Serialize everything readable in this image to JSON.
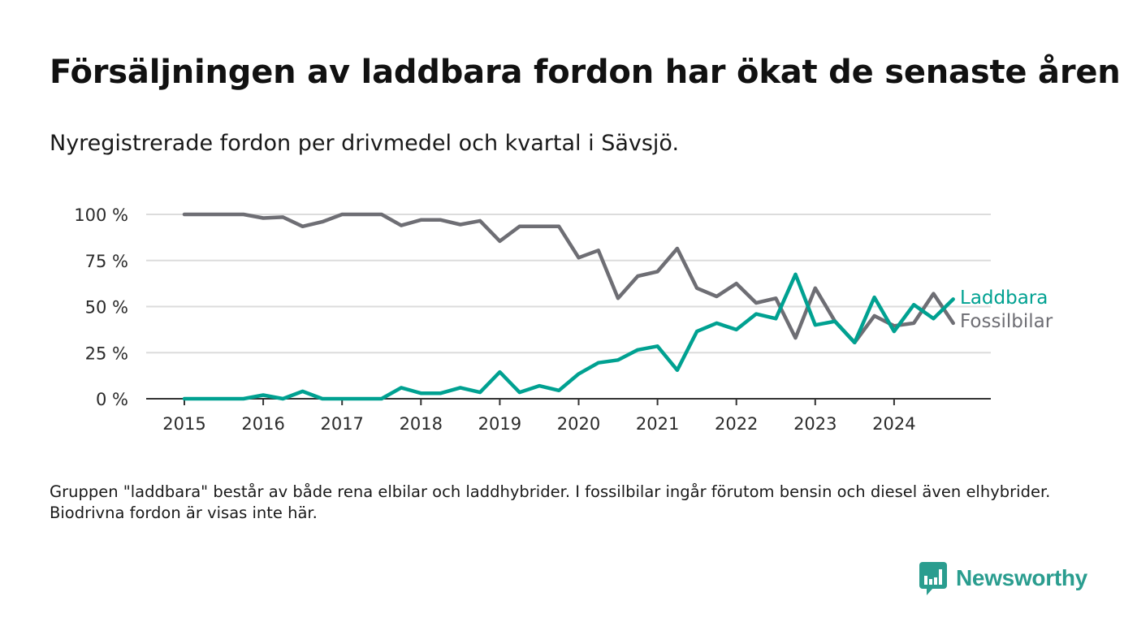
{
  "title": "Försäljningen av laddbara fordon har ökat de senaste åren",
  "subtitle": "Nyregistrerade fordon per drivmedel och kvartal i Sävsjö.",
  "note": "Gruppen \"laddbara\" består av både rena elbilar och laddhybrider. I fossilbilar ingår förutom bensin och diesel även elhybrider. Biodrivna fordon är visas inte här.",
  "brand": {
    "name": "Newsworthy",
    "icon": "newsworthy-logo-icon",
    "color": "#2a9d8f"
  },
  "chart_data": {
    "type": "line",
    "title": "Försäljningen av laddbara fordon har ökat de senaste åren",
    "xlabel": "",
    "ylabel": "",
    "x_ticks": [
      "2015",
      "2016",
      "2017",
      "2018",
      "2019",
      "2020",
      "2021",
      "2022",
      "2023",
      "2024"
    ],
    "y_ticks": [
      "0 %",
      "25 %",
      "50 %",
      "75 %",
      "100 %"
    ],
    "y_tick_values": [
      0,
      25,
      50,
      75,
      100
    ],
    "ylim": [
      0,
      100
    ],
    "xlim": [
      2014.5,
      2025.0
    ],
    "grid": true,
    "legend": "right-end-labels",
    "x": [
      2015.0,
      2015.25,
      2015.5,
      2015.75,
      2016.0,
      2016.25,
      2016.5,
      2016.75,
      2017.0,
      2017.25,
      2017.5,
      2017.75,
      2018.0,
      2018.25,
      2018.5,
      2018.75,
      2019.0,
      2019.25,
      2019.5,
      2019.75,
      2020.0,
      2020.25,
      2020.5,
      2020.75,
      2021.0,
      2021.25,
      2021.5,
      2021.75,
      2022.0,
      2022.25,
      2022.5,
      2022.75,
      2023.0,
      2023.25,
      2023.5,
      2023.75,
      2024.0,
      2024.25,
      2024.5,
      2024.75
    ],
    "series": [
      {
        "name": "Laddbara",
        "color": "#00a191",
        "values": [
          0,
          0,
          0,
          0,
          2,
          0,
          4,
          0,
          0,
          0,
          0,
          6,
          3,
          3,
          6,
          3.5,
          14.5,
          3.5,
          7,
          4.5,
          13.5,
          19.5,
          21,
          26.5,
          28.5,
          15.5,
          36.5,
          41,
          37.5,
          46,
          43.5,
          67.5,
          40,
          42,
          30.5,
          55,
          36.5,
          51,
          43.5,
          54
        ]
      },
      {
        "name": "Fossilbilar",
        "color": "#6e6e74",
        "values": [
          100,
          100,
          100,
          100,
          98,
          98.5,
          93.5,
          96,
          100,
          100,
          100,
          94,
          97,
          97,
          94.5,
          96.5,
          85.5,
          93.5,
          93.5,
          93.5,
          76.5,
          80.5,
          54.5,
          66.5,
          69,
          81.5,
          60,
          55.5,
          62.5,
          52,
          54.5,
          33,
          60,
          42,
          30.5,
          45,
          39.5,
          41,
          57,
          41
        ]
      }
    ]
  }
}
